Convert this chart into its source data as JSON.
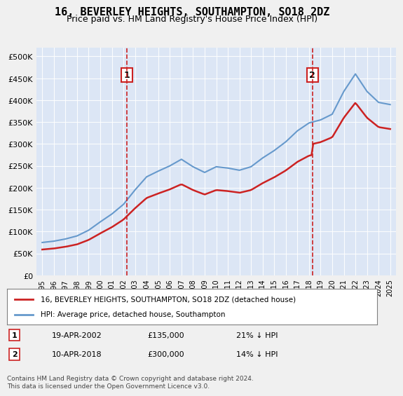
{
  "title": "16, BEVERLEY HEIGHTS, SOUTHAMPTON, SO18 2DZ",
  "subtitle": "Price paid vs. HM Land Registry's House Price Index (HPI)",
  "legend_line1": "16, BEVERLEY HEIGHTS, SOUTHAMPTON, SO18 2DZ (detached house)",
  "legend_line2": "HPI: Average price, detached house, Southampton",
  "footnote": "Contains HM Land Registry data © Crown copyright and database right 2024.\nThis data is licensed under the Open Government Licence v3.0.",
  "sale1_label": "1",
  "sale1_date": "19-APR-2002",
  "sale1_price": "£135,000",
  "sale1_hpi": "21% ↓ HPI",
  "sale1_x": 2002.3,
  "sale1_price_val": 135000,
  "sale2_label": "2",
  "sale2_date": "10-APR-2018",
  "sale2_price": "£300,000",
  "sale2_hpi": "14% ↓ HPI",
  "sale2_x": 2018.3,
  "sale2_price_val": 300000,
  "hpi_color": "#6699cc",
  "sale_color": "#cc2222",
  "marker_box_color": "#cc2222",
  "bg_color": "#e8eef8",
  "plot_bg": "#dce6f5",
  "grid_color": "#ffffff",
  "ylim": [
    0,
    520000
  ],
  "yticks": [
    0,
    50000,
    100000,
    150000,
    200000,
    250000,
    300000,
    350000,
    400000,
    450000,
    500000
  ],
  "ytick_labels": [
    "£0",
    "£50K",
    "£100K",
    "£150K",
    "£200K",
    "£250K",
    "£300K",
    "£350K",
    "£400K",
    "£450K",
    "£500K"
  ],
  "xlim_start": 1994.5,
  "xlim_end": 2025.5
}
